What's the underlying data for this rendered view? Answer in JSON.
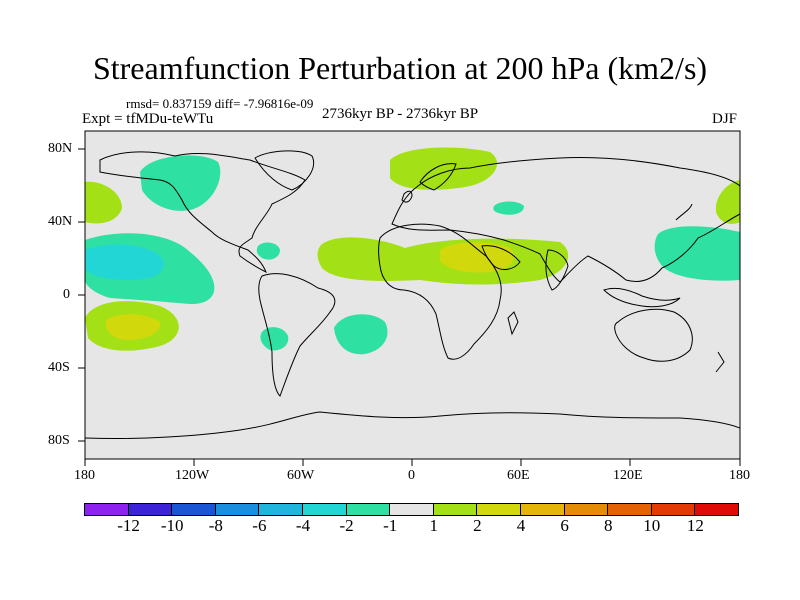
{
  "title": "Streamfunction Perturbation at 200 hPa (km2/s)",
  "stats": "rmsd= 0.837159 diff= -7.96816e-09",
  "experiment": "Expt = tfMDu-teWTu",
  "period": "2736kyr BP - 2736kyr BP",
  "season": "DJF",
  "lat_ticks": [
    "80N",
    "40N",
    "0",
    "40S",
    "80S"
  ],
  "lon_ticks": [
    "180",
    "120W",
    "60W",
    "0",
    "60E",
    "120E",
    "180"
  ],
  "colorbar": {
    "colors": [
      "#8f21f0",
      "#3c23d8",
      "#1a55d6",
      "#1c8ee0",
      "#20b5dd",
      "#22d6d6",
      "#2fe0a3",
      "#e5e5e5",
      "#a4e016",
      "#d1d90c",
      "#e5b509",
      "#e58c06",
      "#e56106",
      "#e33a06",
      "#e00b06"
    ],
    "labels": [
      "-12",
      "-10",
      "-8",
      "-6",
      "-4",
      "-2",
      "-1",
      "1",
      "2",
      "4",
      "6",
      "8",
      "10",
      "12"
    ]
  },
  "map": {
    "land_color": "#e6e6e6",
    "coast_color": "#000000"
  }
}
